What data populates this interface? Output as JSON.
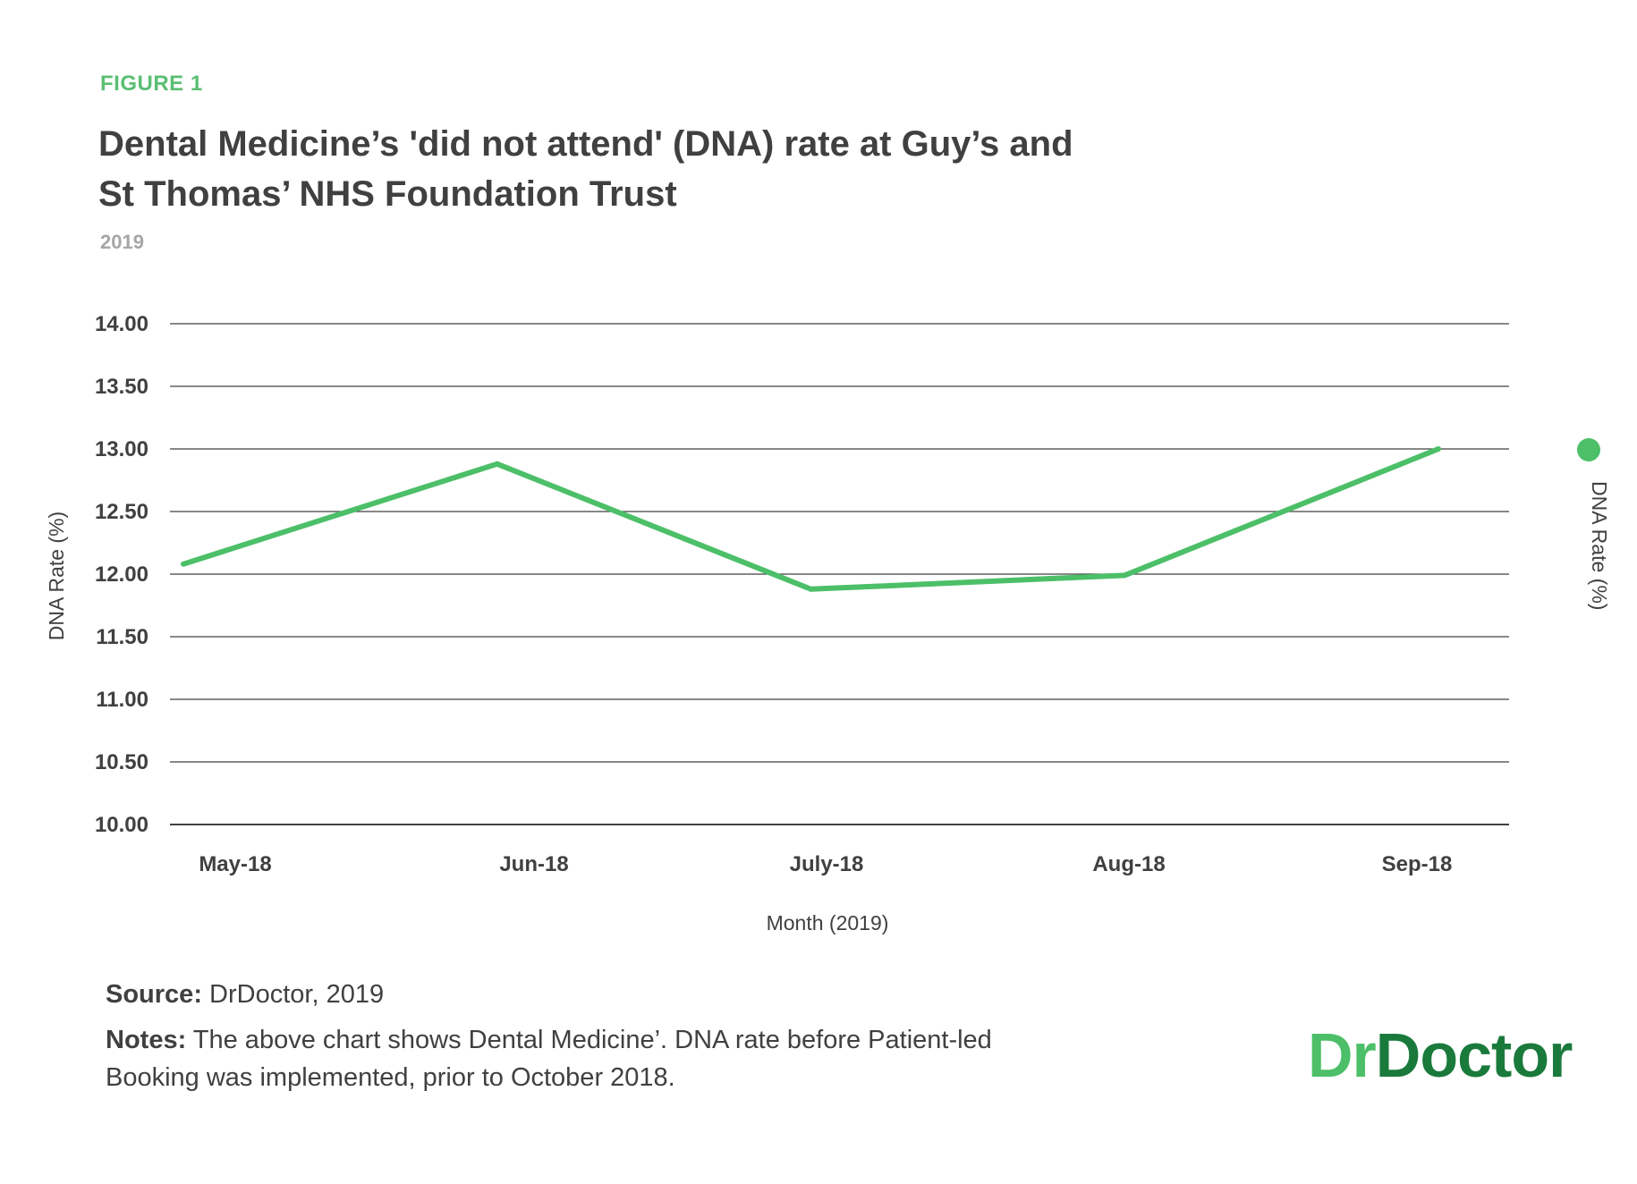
{
  "figure_label": "FIGURE 1",
  "title": "Dental Medicine’s 'did not attend' (DNA) rate at Guy’s and St Thomas’ NHS Foundation Trust",
  "subtitle": "2019",
  "colors": {
    "accent": "#4cbf68",
    "logo_dark": "#1a7a3c",
    "text": "#404040",
    "muted": "#a6a6a6",
    "grid": "#404040"
  },
  "chart_data": {
    "type": "line",
    "title": "Dental Medicine’s 'did not attend' (DNA) rate at Guy’s and St Thomas’ NHS Foundation Trust",
    "subtitle": "2019",
    "categories": [
      "May-18",
      "Jun-18",
      "July-18",
      "Aug-18",
      "Sep-18"
    ],
    "series": [
      {
        "name": "DNA Rate (%)",
        "values": [
          12.08,
          12.88,
          11.88,
          11.99,
          13.0
        ]
      }
    ],
    "xlabel": "Month (2019)",
    "ylabel": "DNA Rate (%)",
    "ylim": [
      10.0,
      14.0
    ],
    "yticks": [
      "10.00",
      "10.50",
      "11.00",
      "11.50",
      "12.00",
      "12.50",
      "13.00",
      "13.50",
      "14.00"
    ],
    "grid": true,
    "legend_position": "right"
  },
  "source": {
    "label": "Source:",
    "text": "DrDoctor, 2019"
  },
  "notes": {
    "label": "Notes:",
    "text": "The above chart shows Dental Medicine’. DNA rate before Patient-led Booking was implemented, prior to October 2018."
  },
  "logo": {
    "part1": "Dr",
    "part2": "Doctor"
  }
}
